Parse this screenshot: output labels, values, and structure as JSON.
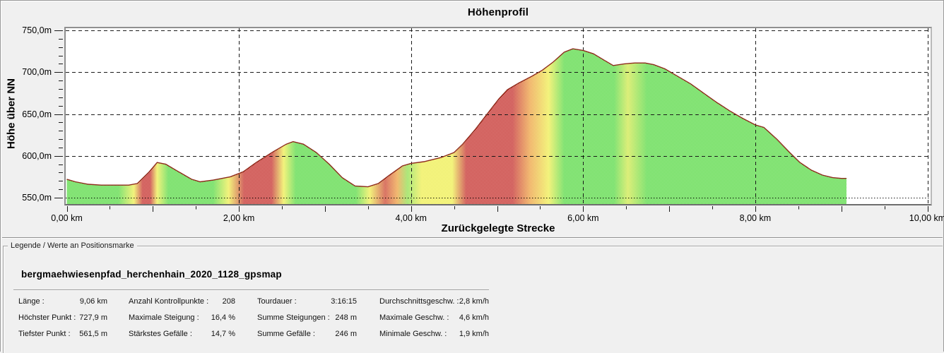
{
  "chart": {
    "title": "Höhenprofil",
    "x_axis_title": "Zurückgelegte Strecke",
    "y_axis_title": "Höhe über NN",
    "x_ticks": [
      "0,00 km",
      "2,00 km",
      "4,00 km",
      "6,00 km",
      "8,00 km",
      "10,00 km"
    ],
    "y_ticks": [
      "750,0m",
      "700,0m",
      "650,0m",
      "600,0m",
      "550,0m"
    ]
  },
  "chart_data": {
    "type": "area",
    "title": "Höhenprofil",
    "xlabel": "Zurückgelegte Strecke",
    "ylabel": "Höhe über NN",
    "x_unit": "km",
    "y_unit": "m",
    "xlim": [
      0,
      10.05
    ],
    "ylim": [
      542,
      754
    ],
    "x_major_ticks_km": [
      0,
      1,
      2,
      3,
      4,
      5,
      6,
      7,
      8,
      9,
      10
    ],
    "x_minor_step_km": 0.5,
    "x_gridlines_km": [
      2,
      4,
      6,
      8,
      10
    ],
    "y_major_ticks_m": [
      550,
      600,
      650,
      700,
      750
    ],
    "y_minor_step_m": 10,
    "grid": "dashed",
    "track_length_km": 9.06,
    "profile": [
      [
        0.0,
        572
      ],
      [
        0.1,
        569
      ],
      [
        0.25,
        566
      ],
      [
        0.4,
        565
      ],
      [
        0.72,
        565
      ],
      [
        0.82,
        567
      ],
      [
        0.95,
        580
      ],
      [
        1.05,
        592
      ],
      [
        1.15,
        590
      ],
      [
        1.3,
        581
      ],
      [
        1.45,
        572
      ],
      [
        1.55,
        569
      ],
      [
        1.7,
        571
      ],
      [
        1.9,
        575
      ],
      [
        2.05,
        581
      ],
      [
        2.2,
        592
      ],
      [
        2.4,
        605
      ],
      [
        2.55,
        614
      ],
      [
        2.63,
        617
      ],
      [
        2.75,
        614
      ],
      [
        2.9,
        604
      ],
      [
        3.05,
        590
      ],
      [
        3.2,
        574
      ],
      [
        3.35,
        564
      ],
      [
        3.5,
        563
      ],
      [
        3.62,
        567
      ],
      [
        3.75,
        577
      ],
      [
        3.9,
        588
      ],
      [
        4.0,
        591
      ],
      [
        4.15,
        593
      ],
      [
        4.35,
        598
      ],
      [
        4.5,
        604
      ],
      [
        4.6,
        614
      ],
      [
        4.75,
        632
      ],
      [
        4.9,
        652
      ],
      [
        5.02,
        668
      ],
      [
        5.12,
        679
      ],
      [
        5.25,
        687
      ],
      [
        5.4,
        695
      ],
      [
        5.52,
        702
      ],
      [
        5.65,
        712
      ],
      [
        5.78,
        724
      ],
      [
        5.88,
        728
      ],
      [
        6.0,
        726
      ],
      [
        6.12,
        722
      ],
      [
        6.25,
        714
      ],
      [
        6.35,
        708
      ],
      [
        6.48,
        710
      ],
      [
        6.6,
        711
      ],
      [
        6.72,
        711
      ],
      [
        6.82,
        709
      ],
      [
        6.95,
        704
      ],
      [
        7.1,
        695
      ],
      [
        7.25,
        686
      ],
      [
        7.4,
        675
      ],
      [
        7.55,
        664
      ],
      [
        7.7,
        654
      ],
      [
        7.85,
        645
      ],
      [
        8.0,
        637
      ],
      [
        8.1,
        634
      ],
      [
        8.25,
        620
      ],
      [
        8.4,
        604
      ],
      [
        8.52,
        592
      ],
      [
        8.65,
        583
      ],
      [
        8.78,
        577
      ],
      [
        8.9,
        574
      ],
      [
        9.0,
        573
      ],
      [
        9.06,
        573
      ]
    ],
    "slope_color_stops": [
      {
        "km": 0.0,
        "color": "#58d944"
      },
      {
        "km": 0.6,
        "color": "#58d944"
      },
      {
        "km": 0.78,
        "color": "#eeee4e"
      },
      {
        "km": 0.88,
        "color": "#c5302c"
      },
      {
        "km": 0.97,
        "color": "#c5302c"
      },
      {
        "km": 1.05,
        "color": "#eeee4e"
      },
      {
        "km": 1.18,
        "color": "#58d944"
      },
      {
        "km": 1.7,
        "color": "#58d944"
      },
      {
        "km": 1.88,
        "color": "#eeee4e"
      },
      {
        "km": 2.06,
        "color": "#c5302c"
      },
      {
        "km": 2.38,
        "color": "#c5302c"
      },
      {
        "km": 2.52,
        "color": "#eeee4e"
      },
      {
        "km": 2.66,
        "color": "#58d944"
      },
      {
        "km": 3.36,
        "color": "#58d944"
      },
      {
        "km": 3.52,
        "color": "#eeee4e"
      },
      {
        "km": 3.7,
        "color": "#cc4530"
      },
      {
        "km": 3.84,
        "color": "#eda03f"
      },
      {
        "km": 3.96,
        "color": "#8fdf4c"
      },
      {
        "km": 4.12,
        "color": "#eeee4e"
      },
      {
        "km": 4.48,
        "color": "#eeee4e"
      },
      {
        "km": 4.64,
        "color": "#c5302c"
      },
      {
        "km": 5.18,
        "color": "#c5302c"
      },
      {
        "km": 5.38,
        "color": "#eda03f"
      },
      {
        "km": 5.6,
        "color": "#eeee4e"
      },
      {
        "km": 5.78,
        "color": "#58d944"
      },
      {
        "km": 6.36,
        "color": "#58d944"
      },
      {
        "km": 6.52,
        "color": "#cfe84a"
      },
      {
        "km": 6.74,
        "color": "#58d944"
      },
      {
        "km": 9.06,
        "color": "#58d944"
      }
    ],
    "outline_color": "#8e2b1c",
    "gridline_color": "#1a1a1a"
  },
  "legend_box": {
    "title": "Legende / Werte an Positionsmarke",
    "track_name": "bergmaehwiesenpfad_herchenhain_2020_1128_gpsmap",
    "stats_columns": [
      {
        "rows": [
          {
            "label": "Länge :",
            "value": "9,06 km"
          },
          {
            "label": "Höchster Punkt :",
            "value": "727,9 m"
          },
          {
            "label": "Tiefster Punkt :",
            "value": "561,5 m"
          }
        ]
      },
      {
        "rows": [
          {
            "label": "Anzahl Kontrollpunkte :",
            "value": "208"
          },
          {
            "label": "Maximale Steigung :",
            "value": "16,4 %"
          },
          {
            "label": "Stärkstes Gefälle :",
            "value": "14,7 %"
          }
        ]
      },
      {
        "rows": [
          {
            "label": "Tourdauer :",
            "value": "3:16:15"
          },
          {
            "label": "Summe Steigungen :",
            "value": "248 m"
          },
          {
            "label": "Summe Gefälle :",
            "value": "246 m"
          }
        ]
      },
      {
        "rows": [
          {
            "label": "Durchschnittsgeschw. :",
            "value": "2,8 km/h"
          },
          {
            "label": "Maximale Geschw. :",
            "value": "4,6 km/h"
          },
          {
            "label": "Minimale Geschw. :",
            "value": "1,9 km/h"
          }
        ]
      }
    ]
  }
}
